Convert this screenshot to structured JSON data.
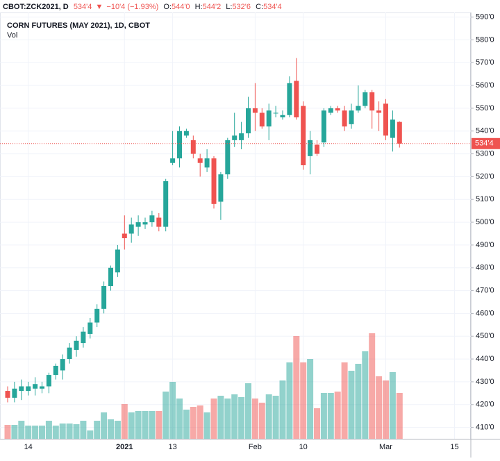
{
  "header": {
    "symbol": "CBOT:ZCK2021, D",
    "price": "534'4",
    "arrow": "▼",
    "change": "−10'4 (−1.93%)",
    "o_key": "O:",
    "o": "544'0",
    "h_key": "H:",
    "h": "544'2",
    "l_key": "L:",
    "l": "532'6",
    "c_key": "C:",
    "c": "534'4"
  },
  "chart_data": {
    "type": "candlestick",
    "title": "CORN FUTURES (MAY 2021), 1D, CBOT",
    "subtitle": "Vol",
    "categories": [
      null,
      null,
      null,
      "14",
      null,
      null,
      null,
      null,
      null,
      null,
      null,
      null,
      null,
      null,
      null,
      null,
      null,
      "2021",
      null,
      null,
      null,
      null,
      null,
      null,
      "13",
      null,
      null,
      null,
      null,
      null,
      null,
      null,
      null,
      null,
      null,
      null,
      "Feb",
      null,
      null,
      null,
      null,
      null,
      null,
      "10",
      null,
      null,
      null,
      null,
      null,
      null,
      null,
      null,
      null,
      null,
      null,
      "Mar",
      null,
      null,
      null,
      null,
      null,
      null,
      null,
      null,
      null,
      "15",
      null,
      null
    ],
    "open": [
      426,
      423,
      426,
      426,
      427,
      427,
      428,
      433,
      435,
      440,
      444,
      447,
      451,
      456,
      462,
      472,
      478,
      495,
      495,
      498,
      499,
      500,
      502,
      498,
      526,
      528,
      538,
      536,
      528,
      524,
      528,
      509,
      521,
      536,
      536,
      539,
      550,
      548,
      542,
      548,
      546,
      547,
      562,
      551,
      529,
      534,
      535,
      548,
      550,
      549,
      543,
      549,
      551,
      557,
      549,
      552,
      537,
      544,
      null,
      null,
      null,
      null,
      null,
      null,
      null,
      null,
      null,
      null
    ],
    "high": [
      428,
      430,
      431,
      430,
      432,
      430,
      434,
      438,
      442,
      447,
      450,
      454,
      458,
      464,
      474,
      481,
      490,
      503,
      502,
      503,
      502,
      505,
      504,
      519,
      540,
      542,
      541,
      538,
      530,
      532,
      529,
      522,
      537,
      548,
      544,
      555,
      561,
      550,
      552,
      551,
      549,
      564,
      572,
      553,
      540,
      536,
      550,
      551,
      551,
      551,
      552,
      560,
      558,
      558,
      553,
      554,
      549,
      544.25,
      null,
      null,
      null,
      null,
      null,
      null,
      null,
      null,
      null,
      null
    ],
    "low": [
      421,
      421,
      422,
      424,
      424,
      425,
      425,
      431,
      431,
      438,
      441,
      445,
      449,
      454,
      460,
      470,
      476,
      488,
      491,
      494,
      497,
      498,
      496,
      496,
      525,
      524,
      537,
      528,
      520,
      522,
      506,
      501,
      519,
      533,
      532,
      537,
      540,
      541,
      536,
      546,
      545,
      546,
      545,
      523,
      521,
      529,
      533,
      547,
      548,
      540,
      541,
      548,
      550,
      541,
      540,
      536,
      531,
      532.75,
      null,
      null,
      null,
      null,
      null,
      null,
      null,
      null,
      null,
      null
    ],
    "close": [
      423,
      427,
      428,
      428,
      429,
      428,
      433,
      437,
      440,
      445,
      448,
      452,
      456,
      462,
      472,
      480,
      488,
      493,
      499,
      500,
      500,
      503,
      498,
      518,
      528,
      540,
      540,
      530,
      526,
      528,
      508,
      521,
      536,
      538,
      539,
      550,
      548,
      542,
      549,
      548,
      547,
      561,
      546,
      525,
      536,
      530,
      549,
      550,
      549,
      542,
      549,
      551,
      557,
      549,
      548,
      538,
      545,
      534.5,
      null,
      null,
      null,
      null,
      null,
      null,
      null,
      null,
      null,
      null
    ],
    "volume": [
      20,
      20,
      26,
      19,
      19,
      19,
      26,
      19,
      22,
      22,
      21,
      26,
      12,
      26,
      38,
      28,
      26,
      50,
      38,
      40,
      40,
      40,
      40,
      68,
      82,
      58,
      42,
      46,
      48,
      38,
      58,
      62,
      58,
      64,
      60,
      80,
      58,
      52,
      64,
      62,
      84,
      110,
      148,
      110,
      115,
      44,
      66,
      66,
      68,
      110,
      98,
      108,
      126,
      152,
      90,
      84,
      96,
      66,
      null,
      null,
      null,
      null,
      null,
      null,
      null,
      null,
      null,
      null
    ],
    "up_color": "#26a69a",
    "down_color": "#ef5350",
    "ylim": [
      405,
      592
    ],
    "yticks": [
      {
        "value": 410,
        "label": "410'0"
      },
      {
        "value": 420,
        "label": "420'0"
      },
      {
        "value": 430,
        "label": "430'0"
      },
      {
        "value": 440,
        "label": "440'0"
      },
      {
        "value": 450,
        "label": "450'0"
      },
      {
        "value": 460,
        "label": "460'0"
      },
      {
        "value": 470,
        "label": "470'0"
      },
      {
        "value": 480,
        "label": "480'0"
      },
      {
        "value": 490,
        "label": "490'0"
      },
      {
        "value": 500,
        "label": "500'0"
      },
      {
        "value": 510,
        "label": "510'0"
      },
      {
        "value": 520,
        "label": "520'0"
      },
      {
        "value": 530,
        "label": "530'0"
      },
      {
        "value": 540,
        "label": "540'0"
      },
      {
        "value": 550,
        "label": "550'0"
      },
      {
        "value": 560,
        "label": "560'0"
      },
      {
        "value": 570,
        "label": "570'0"
      },
      {
        "value": 580,
        "label": "580'0"
      },
      {
        "value": 590,
        "label": "590'0"
      }
    ],
    "vlim": [
      0,
      160
    ],
    "last": {
      "value": 534.5,
      "label": "534'4"
    },
    "grid": true
  }
}
